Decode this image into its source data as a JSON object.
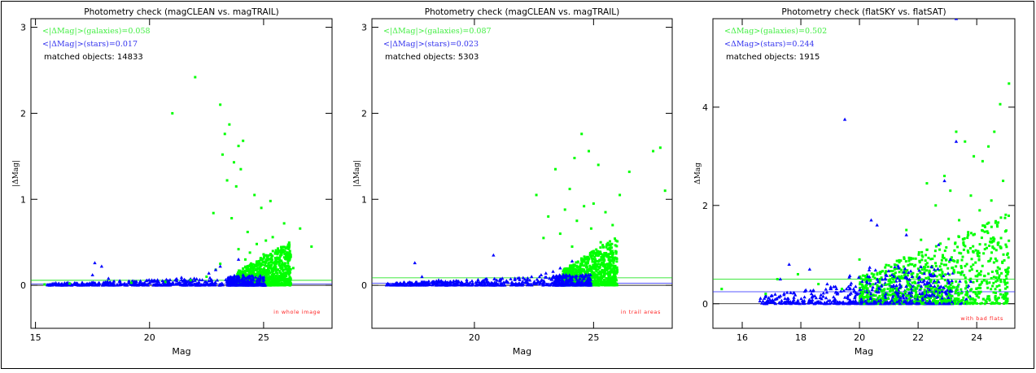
{
  "chart_data": [
    {
      "type": "scatter",
      "title": "Photometry check (magCLEAN vs. magTRAIL)",
      "xlabel": "Mag",
      "ylabel": "|ΔMag|",
      "xlim": [
        14.8,
        28.0
      ],
      "ylim": [
        -0.5,
        3.1
      ],
      "xticks": [
        15,
        20,
        25
      ],
      "yticks": [
        0,
        1,
        2,
        3
      ],
      "hlines": [
        {
          "y": 0.058,
          "color": "#00e000"
        },
        {
          "y": 0.017,
          "color": "#2020ff"
        },
        {
          "y": 0.0,
          "color": "#000000"
        }
      ],
      "stats": [
        {
          "text": "<|ΔMag|>(galaxies)=0.058",
          "color": "#44ee44"
        },
        {
          "text": "<|ΔMag|>(stars)=0.017",
          "color": "#3333ee"
        }
      ],
      "matched": "matched objects: 14833",
      "note": "in whole image",
      "series": [
        {
          "name": "galaxies",
          "color": "#00ff00",
          "marker": "square",
          "x": [
            22.0,
            23.1,
            21.0,
            23.5,
            23.3,
            24.1,
            23.9,
            23.2,
            23.7,
            24.0,
            23.4,
            23.8,
            24.6,
            25.3,
            24.9,
            22.8,
            23.6,
            25.9,
            26.6,
            27.1,
            25.4,
            24.3,
            24.7,
            25.1,
            23.9,
            24.4,
            25.7,
            26.1,
            24.2,
            23.1,
            22.9,
            25.0,
            24.8,
            26.3,
            15.4,
            16.5,
            19.2,
            20.7,
            21.8,
            22.5
          ],
          "y": [
            2.42,
            2.1,
            2.0,
            1.87,
            1.76,
            1.68,
            1.62,
            1.52,
            1.43,
            1.35,
            1.22,
            1.15,
            1.05,
            0.98,
            0.9,
            0.84,
            0.78,
            0.72,
            0.66,
            0.45,
            0.56,
            0.62,
            0.48,
            0.52,
            0.42,
            0.38,
            0.4,
            0.3,
            0.3,
            0.25,
            0.18,
            0.36,
            0.28,
            0.2,
            0.01,
            0.02,
            0.03,
            0.04,
            0.06,
            0.1
          ]
        },
        {
          "name": "stars",
          "color": "#0000ff",
          "marker": "triangle",
          "x": [
            17.6,
            17.9,
            17.5,
            18.2,
            19.6,
            20.1,
            21.4,
            22.6,
            23.1,
            23.9,
            24.1,
            22.9,
            23.5,
            18.7,
            20.8
          ],
          "y": [
            0.26,
            0.22,
            0.12,
            0.08,
            0.05,
            0.06,
            0.09,
            0.14,
            0.22,
            0.3,
            0.12,
            0.18,
            0.08,
            0.04,
            0.05
          ]
        }
      ]
    },
    {
      "type": "scatter",
      "title": "Photometry check (magCLEAN vs. magTRAIL)",
      "xlabel": "Mag",
      "ylabel": "|ΔMag|",
      "xlim": [
        15.7,
        28.3
      ],
      "ylim": [
        -0.5,
        3.1
      ],
      "xticks": [
        20,
        25
      ],
      "yticks": [
        0,
        1,
        2,
        3
      ],
      "hlines": [
        {
          "y": 0.087,
          "color": "#00e000"
        },
        {
          "y": 0.023,
          "color": "#2020ff"
        },
        {
          "y": 0.0,
          "color": "#000000"
        }
      ],
      "stats": [
        {
          "text": "<|ΔMag|>(galaxies)=0.087",
          "color": "#44ee44"
        },
        {
          "text": "<|ΔMag|>(stars)=0.023",
          "color": "#3333ee"
        }
      ],
      "matched": "matched objects: 5303",
      "note": "in trail areas",
      "series": [
        {
          "name": "galaxies",
          "color": "#00ff00",
          "marker": "square",
          "x": [
            24.5,
            24.8,
            24.2,
            25.2,
            23.4,
            27.8,
            27.5,
            26.5,
            28.0,
            26.1,
            24.0,
            24.6,
            25.0,
            25.5,
            23.8,
            22.6,
            23.1,
            24.3,
            25.8,
            24.9,
            23.6,
            22.9,
            25.3,
            24.1,
            25.6
          ],
          "y": [
            1.76,
            1.56,
            1.48,
            1.4,
            1.35,
            1.6,
            1.56,
            1.32,
            1.1,
            1.05,
            1.12,
            0.92,
            0.95,
            0.85,
            0.88,
            1.05,
            0.8,
            0.75,
            0.7,
            0.66,
            0.6,
            0.55,
            0.5,
            0.45,
            0.42
          ]
        },
        {
          "name": "stars",
          "color": "#0000ff",
          "marker": "triangle",
          "x": [
            17.5,
            20.8,
            17.8,
            18.5,
            19.9,
            21.1,
            22.4,
            23.0,
            23.6,
            24.1,
            21.7,
            22.8,
            23.3
          ],
          "y": [
            0.26,
            0.35,
            0.1,
            0.06,
            0.05,
            0.07,
            0.1,
            0.14,
            0.2,
            0.28,
            0.08,
            0.12,
            0.16
          ]
        }
      ]
    },
    {
      "type": "scatter",
      "title": "Photometry check (flatSKY vs. flatSAT)",
      "xlabel": "Mag",
      "ylabel": "ΔMag",
      "xlim": [
        15.0,
        25.3
      ],
      "ylim": [
        -0.5,
        5.8
      ],
      "xticks": [
        16,
        18,
        20,
        22,
        24
      ],
      "yticks": [
        0,
        2,
        4
      ],
      "hlines": [
        {
          "y": 0.502,
          "color": "#00e000"
        },
        {
          "y": 0.244,
          "color": "#2020ff"
        },
        {
          "y": 0.0,
          "color": "#000000"
        }
      ],
      "stats": [
        {
          "text": "<ΔMag>(galaxies)=0.502",
          "color": "#44ee44"
        },
        {
          "text": "<ΔMag>(stars)=0.244",
          "color": "#3333ee"
        }
      ],
      "matched": "matched objects: 1915",
      "note": "with bad flats",
      "series": [
        {
          "name": "galaxies",
          "color": "#00ff00",
          "marker": "square",
          "x": [
            25.1,
            24.8,
            23.3,
            24.6,
            23.6,
            24.4,
            23.9,
            24.2,
            22.3,
            22.9,
            24.9,
            23.1,
            23.8,
            24.5,
            22.6,
            24.1,
            21.6,
            23.4,
            24.7,
            22.1,
            15.3,
            16.8,
            17.2,
            17.9,
            18.6,
            19.4,
            20.0,
            20.7,
            21.2,
            21.8
          ],
          "y": [
            4.48,
            4.06,
            3.5,
            3.5,
            3.3,
            3.2,
            3.0,
            2.9,
            2.45,
            2.6,
            2.5,
            2.3,
            2.2,
            2.1,
            2.0,
            1.9,
            1.5,
            1.7,
            1.6,
            1.3,
            0.3,
            0.2,
            0.5,
            0.6,
            0.4,
            0.3,
            0.9,
            0.5,
            0.7,
            0.8
          ]
        },
        {
          "name": "stars",
          "color": "#0000ff",
          "marker": "triangle",
          "x": [
            23.3,
            19.5,
            23.3,
            22.9,
            20.4,
            20.6,
            21.6,
            22.7,
            17.6,
            18.3,
            17.3,
            23.1,
            22.1,
            18.9,
            19.8,
            16.9,
            21.1,
            22.4,
            23.8,
            20.9
          ],
          "y": [
            5.8,
            3.75,
            3.3,
            2.5,
            1.7,
            1.6,
            1.4,
            1.2,
            0.8,
            0.7,
            0.5,
            0.9,
            0.75,
            0.4,
            0.3,
            0.12,
            0.35,
            0.6,
            0.45,
            0.2
          ]
        }
      ]
    }
  ]
}
